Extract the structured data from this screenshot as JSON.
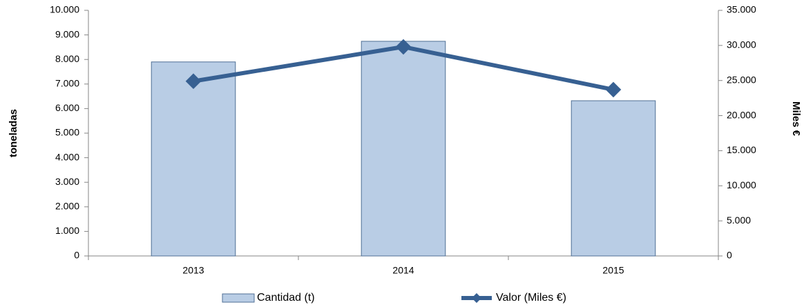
{
  "chart_data": {
    "type": "bar",
    "ylabel": "toneladas",
    "y2label": "Miles €",
    "categories": [
      "2013",
      "2014",
      "2015"
    ],
    "series": [
      {
        "name": "Cantidad (t)",
        "type": "bar",
        "color": "#b9cde5",
        "values": [
          7900,
          8740,
          6320
        ]
      },
      {
        "name": "Valor (Miles €)",
        "type": "line",
        "axis": "y2",
        "color": "#376092",
        "values": [
          24900,
          29800,
          23700
        ]
      }
    ],
    "ylim": [
      0,
      10000
    ],
    "yticks": [
      0,
      {
        "value": 1000,
        "label": "1.000"
      },
      {
        "value": 2000,
        "label": "2.000"
      },
      {
        "value": 3000,
        "label": "3.000"
      },
      {
        "value": 4000,
        "label": "4.000"
      },
      {
        "value": 5000,
        "label": "5.000"
      },
      {
        "value": 6000,
        "label": "6.000"
      },
      {
        "value": 7000,
        "label": "7.000"
      },
      {
        "value": 8000,
        "label": "8.000"
      },
      {
        "value": 9000,
        "label": "9.000"
      },
      {
        "value": 10000,
        "label": "10.000"
      }
    ],
    "y2lim": [
      0,
      35000
    ],
    "y2ticks": [
      0,
      {
        "value": 5000,
        "label": "5.000"
      },
      {
        "value": 10000,
        "label": "10.000"
      },
      {
        "value": 15000,
        "label": "15.000"
      },
      {
        "value": 20000,
        "label": "20.000"
      },
      {
        "value": 25000,
        "label": "25.000"
      },
      {
        "value": 30000,
        "label": "30.000"
      },
      {
        "value": 35000,
        "label": "35.000"
      }
    ],
    "legend": "bottom"
  }
}
